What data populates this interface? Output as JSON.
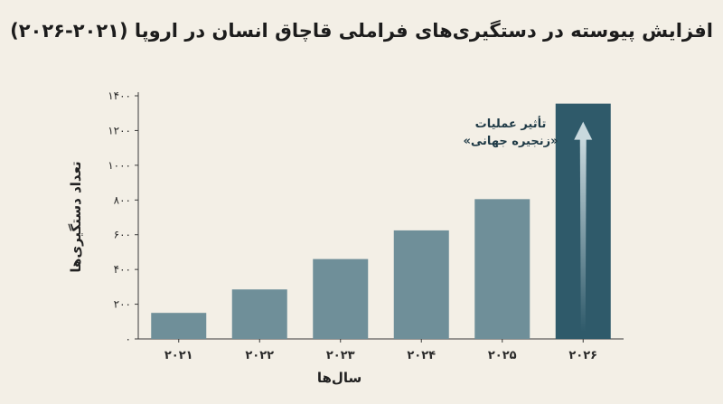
{
  "chart_data": {
    "type": "bar",
    "title": "افزایش پیوسته در دستگیری‌های فراملی قاچاق انسان در اروپا (۲۰۲۱-۲۰۲۶)",
    "xlabel": "سال‌ها",
    "ylabel": "تعداد دستگیری‌ها",
    "categories": [
      "۲۰۲۱",
      "۲۰۲۲",
      "۲۰۲۳",
      "۲۰۲۴",
      "۲۰۲۵",
      "۲۰۲۶"
    ],
    "values": [
      150,
      285,
      460,
      625,
      805,
      1355
    ],
    "ylim": [
      0,
      1400
    ],
    "yticks": [
      0,
      200,
      400,
      600,
      800,
      1000,
      1200,
      1400
    ],
    "ytick_labels": [
      "۰",
      "۲۰۰",
      "۴۰۰",
      "۶۰۰",
      "۸۰۰",
      "۱۰۰۰",
      "۱۲۰۰",
      "۱۴۰۰"
    ],
    "annotation": {
      "line1": "تأثیر عملیات",
      "line2": "«زنجیره جهانی»"
    },
    "colors": {
      "bar": "#6f8f99",
      "highlight_bar": "#2f5a6a",
      "arrow": "#c9d9de",
      "background": "#f3efe6"
    },
    "grid": false
  }
}
